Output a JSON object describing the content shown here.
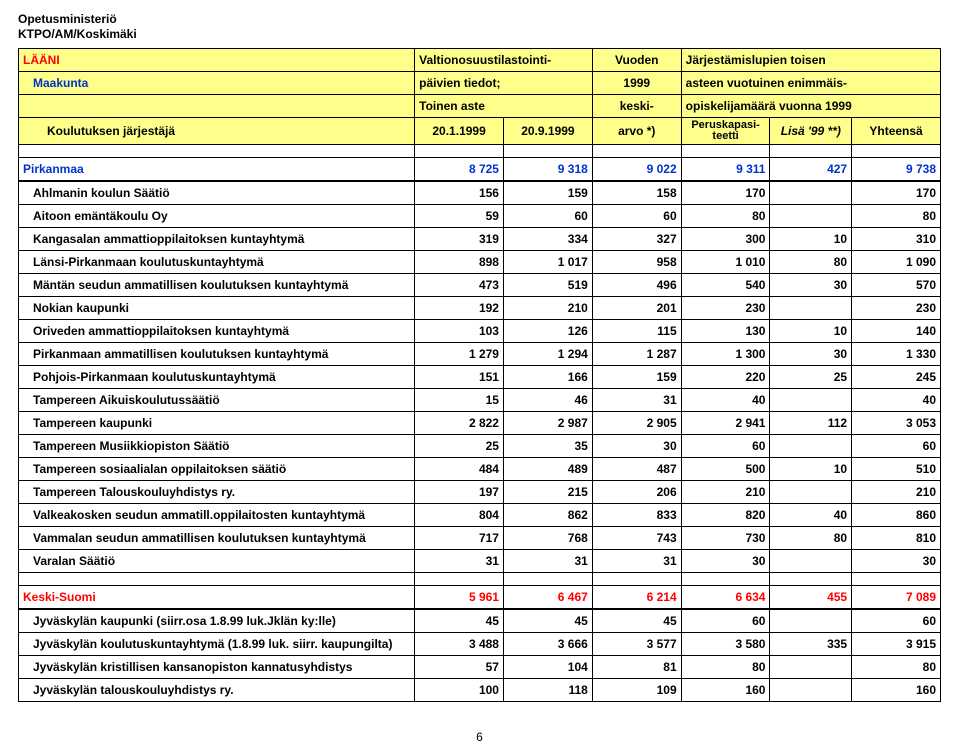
{
  "doc_header": {
    "line1": "Opetusministeriö",
    "line2": "KTPO/AM/Koskimäki"
  },
  "col_header": {
    "laani": "LÄÄNI",
    "maakunta": "Maakunta",
    "jarjestaja": "Koulutuksen järjestäjä",
    "c2_l1": "Valtionosuustilastointi-",
    "c2_l2": "päivien tiedot;",
    "c2_l3": "Toinen aste",
    "c2_l4": "20.1.1999",
    "c3_l4": "20.9.1999",
    "c4_l1": "Vuoden",
    "c4_l2": "1999",
    "c4_l3": "keski-",
    "c4_l4": "arvo  *)",
    "c5_l1": "Järjestämislupien toisen",
    "c5_l2": "asteen vuotuinen enimmäis-",
    "c5_l3": "opiskelijamäärä vuonna 1999",
    "c5_l4a": "Peruskapasi-",
    "c5_l4b": "teetti",
    "c6_l4": "Lisä '99 **)",
    "c7_l4": "Yhteensä"
  },
  "sections": [
    {
      "type": "maakunta",
      "title": "Pirkanmaa",
      "totals": [
        "8 725",
        "9 318",
        "9 022",
        "9 311",
        "427",
        "9 738"
      ],
      "rows": [
        {
          "name": "Ahlmanin koulun Säätiö",
          "v": [
            "156",
            "159",
            "158",
            "170",
            "",
            "170"
          ]
        },
        {
          "name": "Aitoon emäntäkoulu Oy",
          "v": [
            "59",
            "60",
            "60",
            "80",
            "",
            "80"
          ]
        },
        {
          "name": "Kangasalan ammattioppilaitoksen kuntayhtymä",
          "v": [
            "319",
            "334",
            "327",
            "300",
            "10",
            "310"
          ]
        },
        {
          "name": "Länsi-Pirkanmaan koulutuskuntayhtymä",
          "v": [
            "898",
            "1 017",
            "958",
            "1 010",
            "80",
            "1 090"
          ]
        },
        {
          "name": "Mäntän seudun ammatillisen koulutuksen kuntayhtymä",
          "v": [
            "473",
            "519",
            "496",
            "540",
            "30",
            "570"
          ]
        },
        {
          "name": "Nokian kaupunki",
          "v": [
            "192",
            "210",
            "201",
            "230",
            "",
            "230"
          ]
        },
        {
          "name": "Oriveden ammattioppilaitoksen kuntayhtymä",
          "v": [
            "103",
            "126",
            "115",
            "130",
            "10",
            "140"
          ]
        },
        {
          "name": "Pirkanmaan ammatillisen koulutuksen kuntayhtymä",
          "v": [
            "1 279",
            "1 294",
            "1 287",
            "1 300",
            "30",
            "1 330"
          ]
        },
        {
          "name": "Pohjois-Pirkanmaan koulutuskuntayhtymä",
          "v": [
            "151",
            "166",
            "159",
            "220",
            "25",
            "245"
          ]
        },
        {
          "name": "Tampereen Aikuiskoulutussäätiö",
          "v": [
            "15",
            "46",
            "31",
            "40",
            "",
            "40"
          ]
        },
        {
          "name": "Tampereen kaupunki",
          "v": [
            "2 822",
            "2 987",
            "2 905",
            "2 941",
            "112",
            "3 053"
          ]
        },
        {
          "name": "Tampereen Musiikkiopiston Säätiö",
          "v": [
            "25",
            "35",
            "30",
            "60",
            "",
            "60"
          ]
        },
        {
          "name": "Tampereen sosiaalialan oppilaitoksen säätiö",
          "v": [
            "484",
            "489",
            "487",
            "500",
            "10",
            "510"
          ]
        },
        {
          "name": "Tampereen Talouskouluyhdistys ry.",
          "v": [
            "197",
            "215",
            "206",
            "210",
            "",
            "210"
          ]
        },
        {
          "name": "Valkeakosken seudun ammatill.oppilaitosten kuntayhtymä",
          "v": [
            "804",
            "862",
            "833",
            "820",
            "40",
            "860"
          ]
        },
        {
          "name": "Vammalan seudun ammatillisen koulutuksen kuntayhtymä",
          "v": [
            "717",
            "768",
            "743",
            "730",
            "80",
            "810"
          ]
        },
        {
          "name": "Varalan Säätiö",
          "v": [
            "31",
            "31",
            "31",
            "30",
            "",
            "30"
          ]
        }
      ]
    },
    {
      "type": "laani",
      "title": "Keski-Suomi",
      "totals": [
        "5 961",
        "6 467",
        "6 214",
        "6 634",
        "455",
        "7 089"
      ],
      "rows": [
        {
          "name": "Jyväskylän kaupunki (siirr.osa 1.8.99 luk.Jklän ky:lle)",
          "v": [
            "45",
            "45",
            "45",
            "60",
            "",
            "60"
          ]
        },
        {
          "name": "Jyväskylän koulutuskuntayhtymä (1.8.99 luk. siirr. kaupungilta)",
          "v": [
            "3 488",
            "3 666",
            "3 577",
            "3 580",
            "335",
            "3 915"
          ]
        },
        {
          "name": "Jyväskylän kristillisen kansanopiston kannatusyhdistys",
          "v": [
            "57",
            "104",
            "81",
            "80",
            "",
            "80"
          ]
        },
        {
          "name": "Jyväskylän talouskouluyhdistys ry.",
          "v": [
            "100",
            "118",
            "109",
            "160",
            "",
            "160"
          ]
        }
      ]
    }
  ],
  "page_number": "6"
}
